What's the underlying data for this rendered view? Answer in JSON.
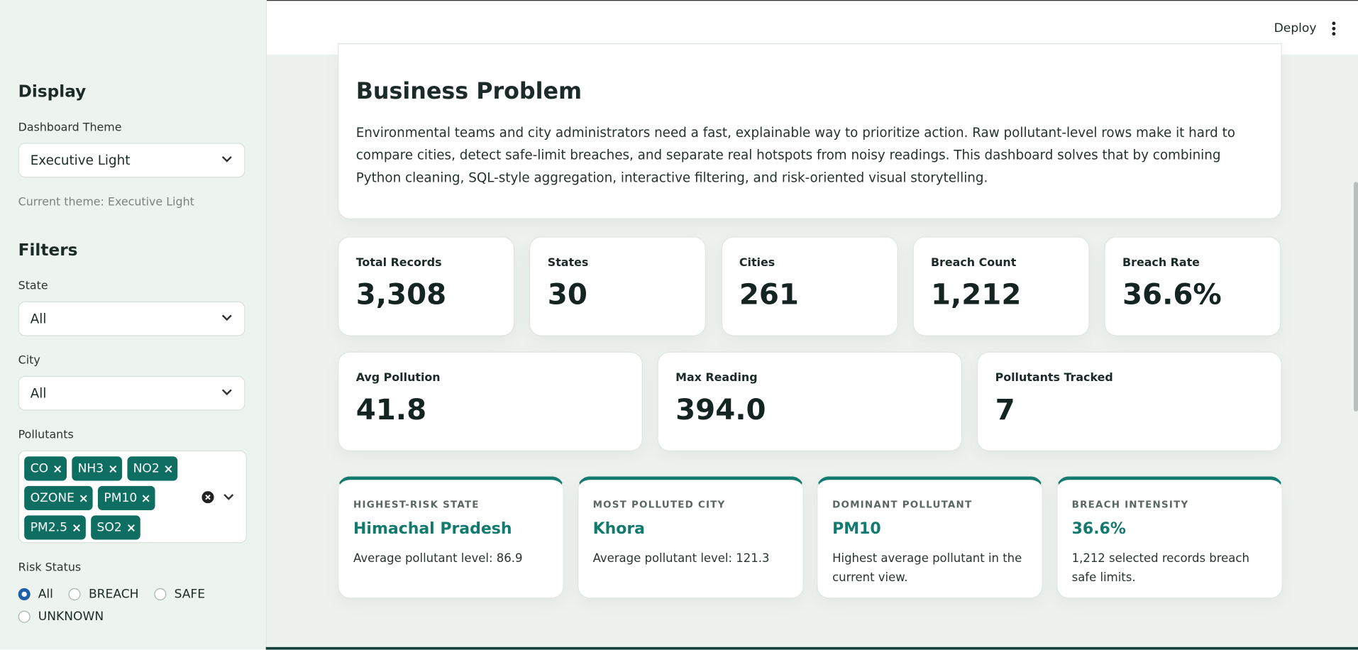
{
  "header": {
    "deploy": "Deploy"
  },
  "sidebar": {
    "display": {
      "heading": "Display",
      "theme_label": "Dashboard Theme",
      "theme_value": "Executive Light",
      "current_theme": "Current theme: Executive Light"
    },
    "filters": {
      "heading": "Filters",
      "state_label": "State",
      "state_value": "All",
      "city_label": "City",
      "city_value": "All",
      "pollutants_label": "Pollutants",
      "pollutants": [
        "CO",
        "NH3",
        "NO2",
        "OZONE",
        "PM10",
        "PM2.5",
        "SO2"
      ],
      "risk_label": "Risk Status",
      "risk_options": [
        "All",
        "BREACH",
        "SAFE",
        "UNKNOWN"
      ],
      "risk_selected": 0
    }
  },
  "main": {
    "problem": {
      "title": "Business Problem",
      "text": "Environmental teams and city administrators need a fast, explainable way to prioritize action. Raw pollutant-level rows make it hard to compare cities, detect safe-limit breaches, and separate real hotspots from noisy readings. This dashboard solves that by combining Python cleaning, SQL-style aggregation, interactive filtering, and risk-oriented visual storytelling."
    },
    "metrics_row1": [
      {
        "label": "Total Records",
        "value": "3,308"
      },
      {
        "label": "States",
        "value": "30"
      },
      {
        "label": "Cities",
        "value": "261"
      },
      {
        "label": "Breach Count",
        "value": "1,212"
      },
      {
        "label": "Breach Rate",
        "value": "36.6%"
      }
    ],
    "metrics_row2": [
      {
        "label": "Avg Pollution",
        "value": "41.8"
      },
      {
        "label": "Max Reading",
        "value": "394.0"
      },
      {
        "label": "Pollutants Tracked",
        "value": "7"
      }
    ],
    "insights": [
      {
        "kicker": "HIGHEST-RISK STATE",
        "title": "Himachal Pradesh",
        "text": "Average pollutant level: 86.9"
      },
      {
        "kicker": "MOST POLLUTED CITY",
        "title": "Khora",
        "text": "Average pollutant level: 121.3"
      },
      {
        "kicker": "DOMINANT POLLUTANT",
        "title": "PM10",
        "text": "Highest average pollutant in the current view."
      },
      {
        "kicker": "BREACH INTENSITY",
        "title": "36.6%",
        "text": "1,212 selected records breach safe limits."
      }
    ]
  }
}
